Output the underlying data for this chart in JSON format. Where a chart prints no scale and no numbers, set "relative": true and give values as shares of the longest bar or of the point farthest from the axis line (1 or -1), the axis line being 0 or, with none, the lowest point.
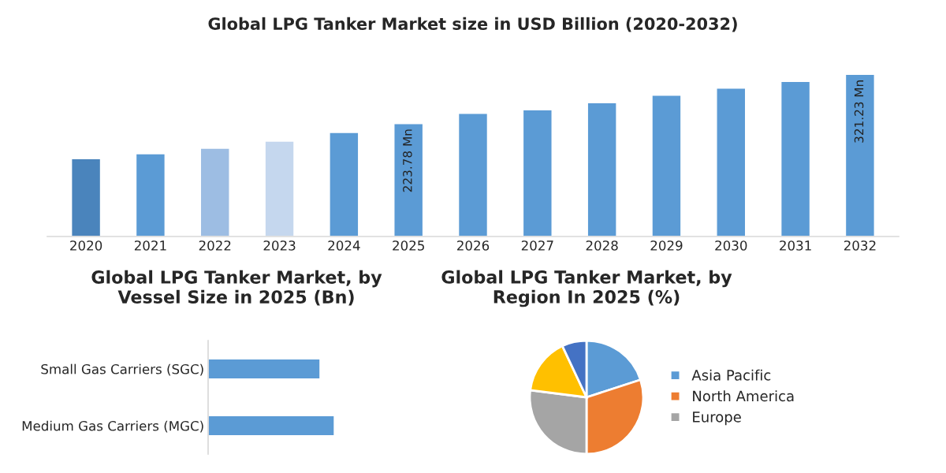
{
  "chart_data": [
    {
      "type": "bar",
      "title": "Global LPG Tanker Market size in USD Billion (2020-2032)",
      "orientation": "vertical",
      "categories": [
        "2020",
        "2021",
        "2022",
        "2023",
        "2024",
        "2025",
        "2026",
        "2027",
        "2028",
        "2029",
        "2030",
        "2031",
        "2032"
      ],
      "values": [
        154,
        164,
        175,
        189,
        206,
        223.78,
        244,
        251,
        265,
        280,
        294,
        307,
        321.23
      ],
      "colors": [
        "#4a84bc",
        "#5b9bd5",
        "#9dbde3",
        "#c5d7ee",
        "#5b9bd5",
        "#5b9bd5",
        "#5b9bd5",
        "#5b9bd5",
        "#5b9bd5",
        "#5b9bd5",
        "#5b9bd5",
        "#5b9bd5",
        "#5b9bd5"
      ],
      "value_labels": [
        null,
        null,
        null,
        null,
        null,
        "223.78 Mn",
        null,
        null,
        null,
        null,
        null,
        null,
        "321.23 Mn"
      ]
    },
    {
      "type": "bar",
      "orientation": "horizontal",
      "title": "Global LPG Tanker Market, by Vessel Size in 2025 (Bn)",
      "relative": true,
      "categories": [
        "Small Gas Carriers (SGC)",
        "Medium Gas Carriers (MGC)"
      ],
      "values": [
        0.887,
        1
      ],
      "colors": [
        "#5b9bd5",
        "#5b9bd5"
      ]
    },
    {
      "type": "pie",
      "title": "Global LPG Tanker Market, by Region In 2025 (%)",
      "legend": "right",
      "categories": [
        "Asia Pacific",
        "North America",
        "Europe",
        null,
        null
      ],
      "values": [
        20,
        30,
        27,
        16,
        7
      ],
      "colors": [
        "#5b9bd5",
        "#ed7d31",
        "#a5a5a5",
        "#ffc000",
        "#4472c4"
      ]
    }
  ]
}
